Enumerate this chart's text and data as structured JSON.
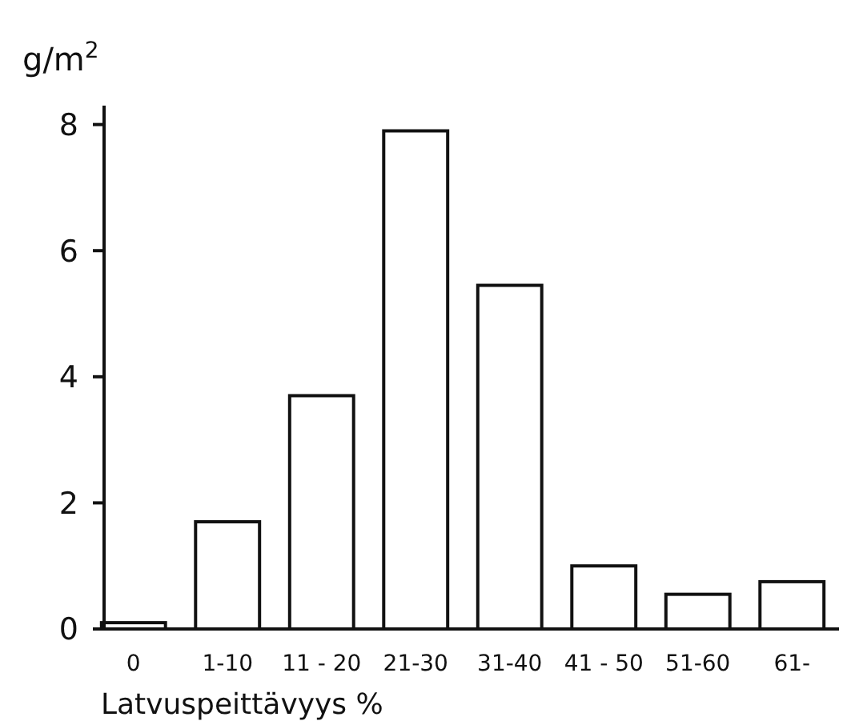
{
  "chart_data": {
    "type": "bar",
    "ylabel": "g/m$^{2}$",
    "xlabel": "Latvuspeittävyys %",
    "categories": [
      "0",
      "1-10",
      "11 - 20",
      "21-30",
      "31-40",
      "41 - 50",
      "51-60",
      "61-"
    ],
    "values": [
      0.1,
      1.7,
      3.7,
      7.9,
      5.45,
      1.0,
      0.55,
      0.75
    ],
    "color": "#ffffff",
    "ylim": [
      0,
      8.3
    ],
    "yticks": [
      0,
      2,
      4,
      6,
      8
    ],
    "grid": false
  }
}
